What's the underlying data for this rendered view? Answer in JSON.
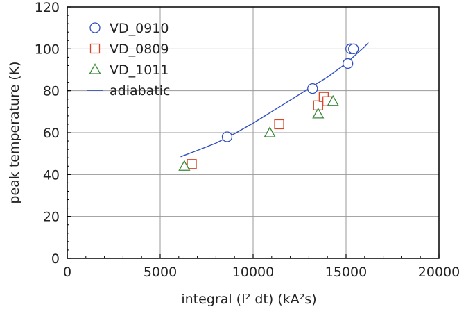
{
  "chart_data": {
    "type": "scatter",
    "xlabel": "integral (I² dt) (kA²s)",
    "ylabel": "peak temperature (K)",
    "xlim": [
      0,
      20000
    ],
    "ylim": [
      0,
      120
    ],
    "x_ticks": [
      0,
      5000,
      10000,
      15000,
      20000
    ],
    "y_ticks": [
      0,
      20,
      40,
      60,
      80,
      100,
      120
    ],
    "grid": true,
    "legend_position": "top-left",
    "series": [
      {
        "name": "VD_0910",
        "marker": "circle",
        "color": "#2f4fbf",
        "points": [
          {
            "x": 8600,
            "y": 58
          },
          {
            "x": 13200,
            "y": 81
          },
          {
            "x": 15100,
            "y": 93
          },
          {
            "x": 15250,
            "y": 100
          },
          {
            "x": 15400,
            "y": 100
          }
        ]
      },
      {
        "name": "VD_0809",
        "marker": "square",
        "color": "#d9472b",
        "points": [
          {
            "x": 6700,
            "y": 45
          },
          {
            "x": 11400,
            "y": 64
          },
          {
            "x": 13500,
            "y": 73
          },
          {
            "x": 13800,
            "y": 77
          },
          {
            "x": 14000,
            "y": 75
          }
        ]
      },
      {
        "name": "VD_1011",
        "marker": "triangle",
        "color": "#3a8a3a",
        "points": [
          {
            "x": 6300,
            "y": 44
          },
          {
            "x": 10900,
            "y": 60
          },
          {
            "x": 13500,
            "y": 69
          },
          {
            "x": 14300,
            "y": 75
          }
        ]
      },
      {
        "name": "adiabatic",
        "marker": "line",
        "color": "#2f4fbf",
        "points": [
          {
            "x": 6100,
            "y": 48.5
          },
          {
            "x": 7000,
            "y": 51.5
          },
          {
            "x": 8000,
            "y": 55
          },
          {
            "x": 9000,
            "y": 59.5
          },
          {
            "x": 10000,
            "y": 64.5
          },
          {
            "x": 11000,
            "y": 70
          },
          {
            "x": 12000,
            "y": 75.5
          },
          {
            "x": 13000,
            "y": 81
          },
          {
            "x": 14000,
            "y": 86.5
          },
          {
            "x": 15000,
            "y": 93
          },
          {
            "x": 16000,
            "y": 101
          },
          {
            "x": 16200,
            "y": 103
          }
        ]
      }
    ]
  }
}
